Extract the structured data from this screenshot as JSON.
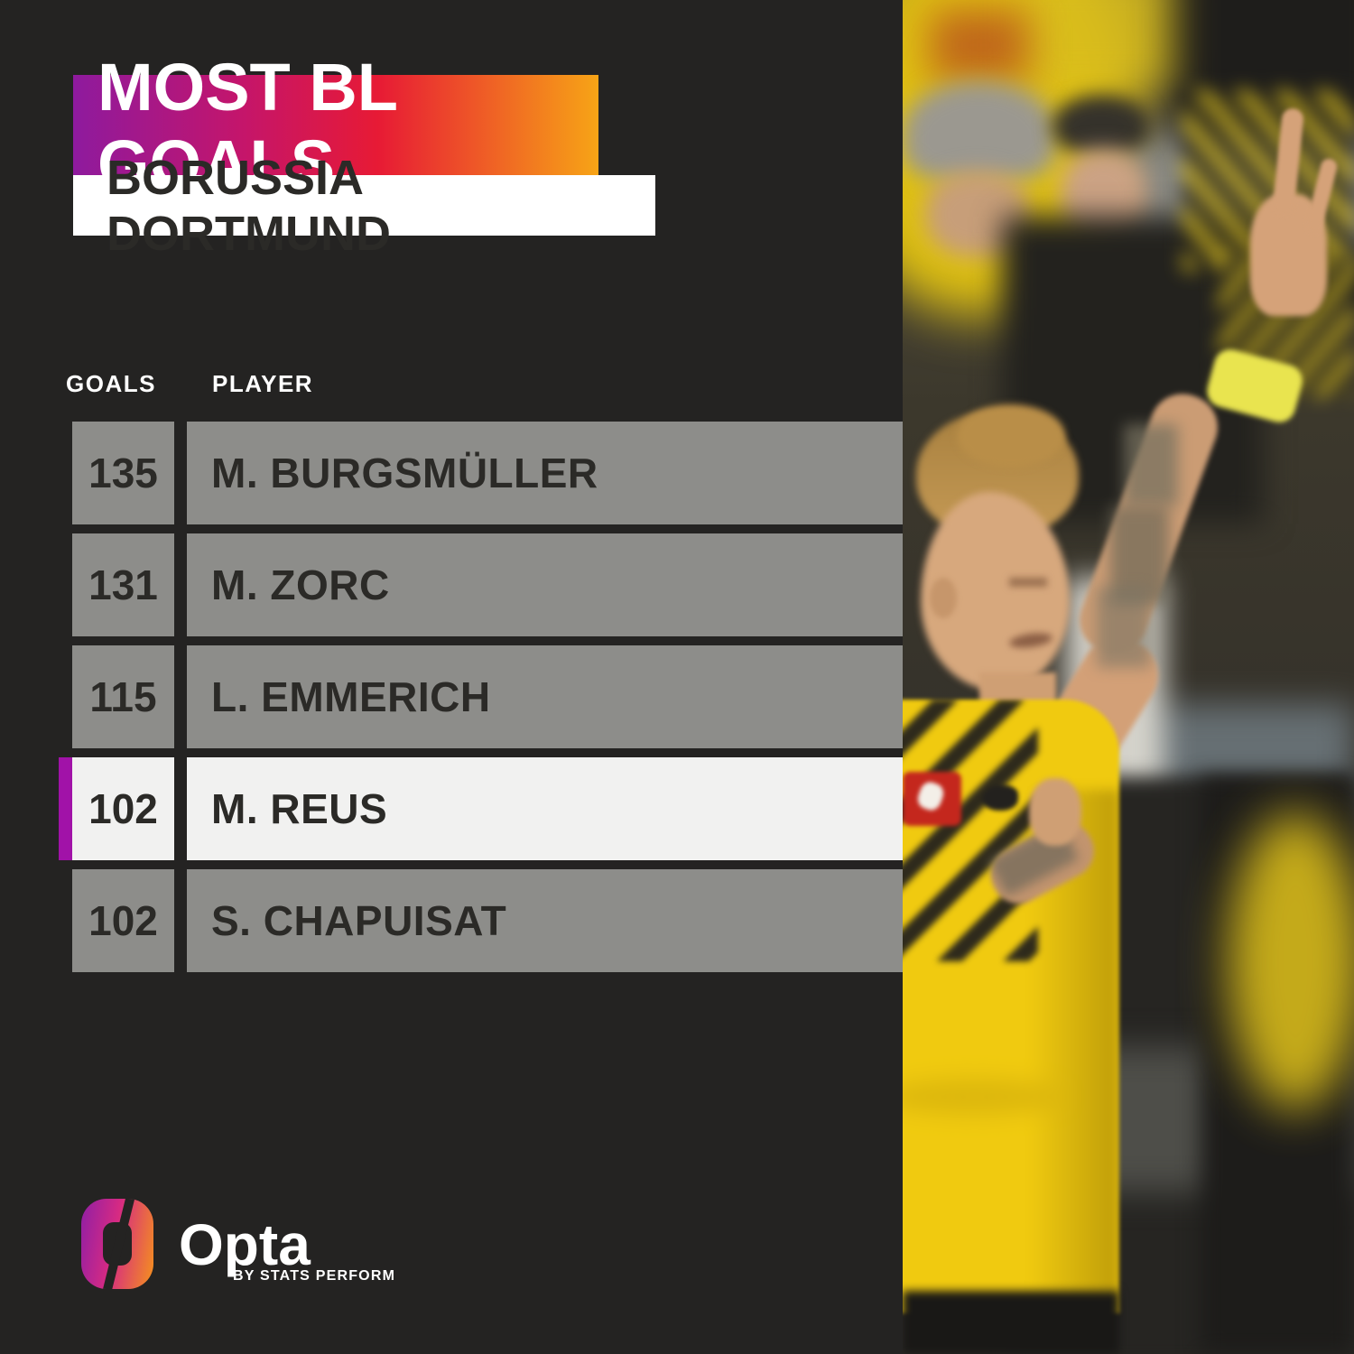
{
  "header": {
    "title": "MOST BL GOALS",
    "subtitle": "BORUSSIA DORTMUND"
  },
  "table": {
    "headers": {
      "goals": "GOALS",
      "player": "PLAYER"
    },
    "rows": [
      {
        "goals": "135",
        "player": "M. BURGSMÜLLER",
        "highlighted": false
      },
      {
        "goals": "131",
        "player": "M. ZORC",
        "highlighted": false
      },
      {
        "goals": "115",
        "player": "L. EMMERICH",
        "highlighted": false
      },
      {
        "goals": "102",
        "player": "M. REUS",
        "highlighted": true
      },
      {
        "goals": "102",
        "player": "S. CHAPUISAT",
        "highlighted": false
      }
    ]
  },
  "branding": {
    "name": "Opta",
    "byline": "BY STATS PERFORM",
    "logo_icon": "opta-o-gradient-ring"
  },
  "photo": {
    "alt": "Marco Reus in a yellow Borussia Dortmund shirt celebrating, tattooed arm raised with finger pointing up, blurred crowd behind"
  },
  "colors": {
    "background": "#242322",
    "banner_gradient": [
      "#8e1a9e",
      "#c4156b",
      "#e71a35",
      "#f7a416"
    ],
    "row_grey": "#8d8d8a",
    "row_highlight": "#f1f1f0",
    "accent_purple": "#a112a8",
    "row_text": "#2b2a27",
    "header_text": "#ffffff"
  },
  "chart_data": {
    "type": "table",
    "title": "MOST BL GOALS",
    "subtitle": "BORUSSIA DORTMUND",
    "columns": [
      "GOALS",
      "PLAYER"
    ],
    "rows": [
      [
        135,
        "M. BURGSMÜLLER"
      ],
      [
        131,
        "M. ZORC"
      ],
      [
        115,
        "L. EMMERICH"
      ],
      [
        102,
        "M. REUS"
      ],
      [
        102,
        "S. CHAPUISAT"
      ]
    ],
    "highlighted_row": "M. REUS",
    "highlight_color": "#a112a8",
    "layout": "ranked list, goals column left, player column right, highlight bar on M. REUS row"
  }
}
